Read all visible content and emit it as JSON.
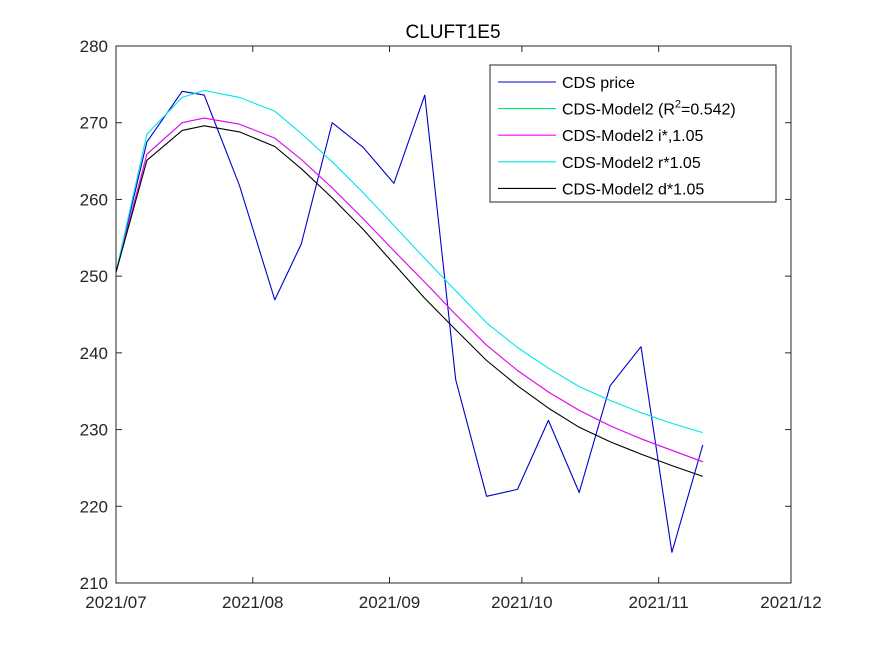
{
  "chart_data": {
    "type": "line",
    "title": "CLUFT1E5",
    "xlabel": "",
    "ylabel": "",
    "x_ticks": [
      "2021/07",
      "2021/08",
      "2021/09",
      "2021/10",
      "2021/11",
      "2021/12"
    ],
    "x_tick_dates": [
      "2021-07-01",
      "2021-08-01",
      "2021-09-01",
      "2021-10-01",
      "2021-11-01",
      "2021-12-01"
    ],
    "xlim": [
      "2021-07-01",
      "2021-12-01"
    ],
    "ylim": [
      210,
      280
    ],
    "y_ticks": [
      210,
      220,
      230,
      240,
      250,
      260,
      270,
      280
    ],
    "grid": false,
    "legend_position": "top-right",
    "x": [
      "2021-07-01",
      "2021-07-08",
      "2021-07-16",
      "2021-07-21",
      "2021-07-29",
      "2021-08-06",
      "2021-08-12",
      "2021-08-19",
      "2021-08-26",
      "2021-09-02",
      "2021-09-09",
      "2021-09-16",
      "2021-09-23",
      "2021-09-30",
      "2021-10-07",
      "2021-10-14",
      "2021-10-21",
      "2021-10-28",
      "2021-11-04",
      "2021-11-11"
    ],
    "series": [
      {
        "name": "CDS price",
        "color": "#0000cc",
        "values": [
          250.5,
          267.5,
          274.1,
          273.6,
          261.8,
          246.9,
          254.2,
          270.0,
          266.8,
          262.1,
          273.6,
          236.5,
          221.3,
          222.2,
          231.2,
          221.8,
          235.7,
          240.8,
          214.0,
          228.0
        ]
      },
      {
        "name": "CDS-Model2 (R",
        "name_sup": "2",
        "name_suffix": "=0.542)",
        "color": "#00e676",
        "values": [
          250.5,
          265.9,
          270.0,
          270.6,
          269.8,
          268.0,
          265.2,
          261.5,
          257.5,
          253.3,
          249.2,
          245.0,
          241.0,
          237.7,
          234.9,
          232.5,
          230.5,
          228.8,
          227.3,
          225.8
        ]
      },
      {
        "name": "CDS-Model2 i*,1.05",
        "color": "#ff00ff",
        "values": [
          250.5,
          265.9,
          270.0,
          270.6,
          269.8,
          268.0,
          265.2,
          261.5,
          257.5,
          253.3,
          249.2,
          245.0,
          241.0,
          237.7,
          234.9,
          232.5,
          230.5,
          228.8,
          227.3,
          225.8
        ]
      },
      {
        "name": "CDS-Model2 r*1.05",
        "color": "#00e5e5",
        "values": [
          250.5,
          268.5,
          273.3,
          274.2,
          273.3,
          271.5,
          268.6,
          264.9,
          260.9,
          256.6,
          252.3,
          248.1,
          243.9,
          240.7,
          238.0,
          235.6,
          233.8,
          232.2,
          230.8,
          229.6
        ]
      },
      {
        "name": "CDS-Model2 d*1.05",
        "color": "#000000",
        "values": [
          250.5,
          265.1,
          269.0,
          269.6,
          268.8,
          266.9,
          264.0,
          260.2,
          256.1,
          251.6,
          247.1,
          243.0,
          239.0,
          235.7,
          232.8,
          230.3,
          228.4,
          226.8,
          225.3,
          223.9
        ]
      }
    ]
  }
}
